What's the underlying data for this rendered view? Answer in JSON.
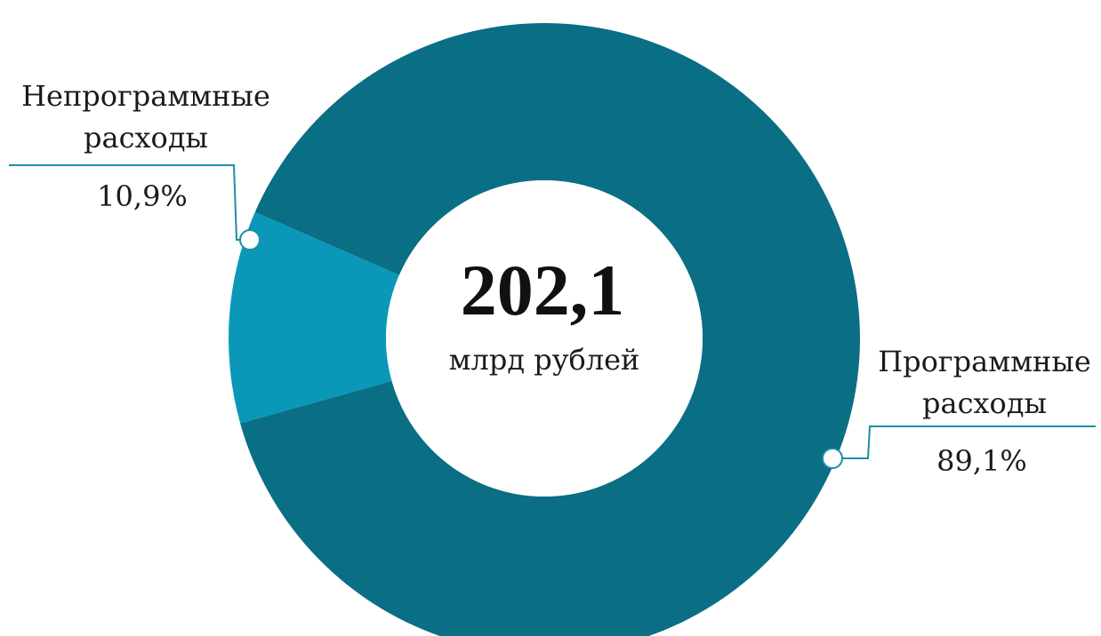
{
  "chart_data": {
    "type": "pie",
    "variant": "donut",
    "center_value": "202,1",
    "center_unit": "млрд рублей",
    "slices": [
      {
        "label_line1": "Программные",
        "label_line2": "расходы",
        "value": 89.1,
        "value_label": "89,1%",
        "color": "#0a6e84"
      },
      {
        "label_line1": "Непрограммные",
        "label_line2": "расходы",
        "value": 10.9,
        "value_label": "10,9%",
        "color": "#0b98b8"
      }
    ],
    "legend": "none",
    "leader_line_color": "#1c8ea6"
  }
}
